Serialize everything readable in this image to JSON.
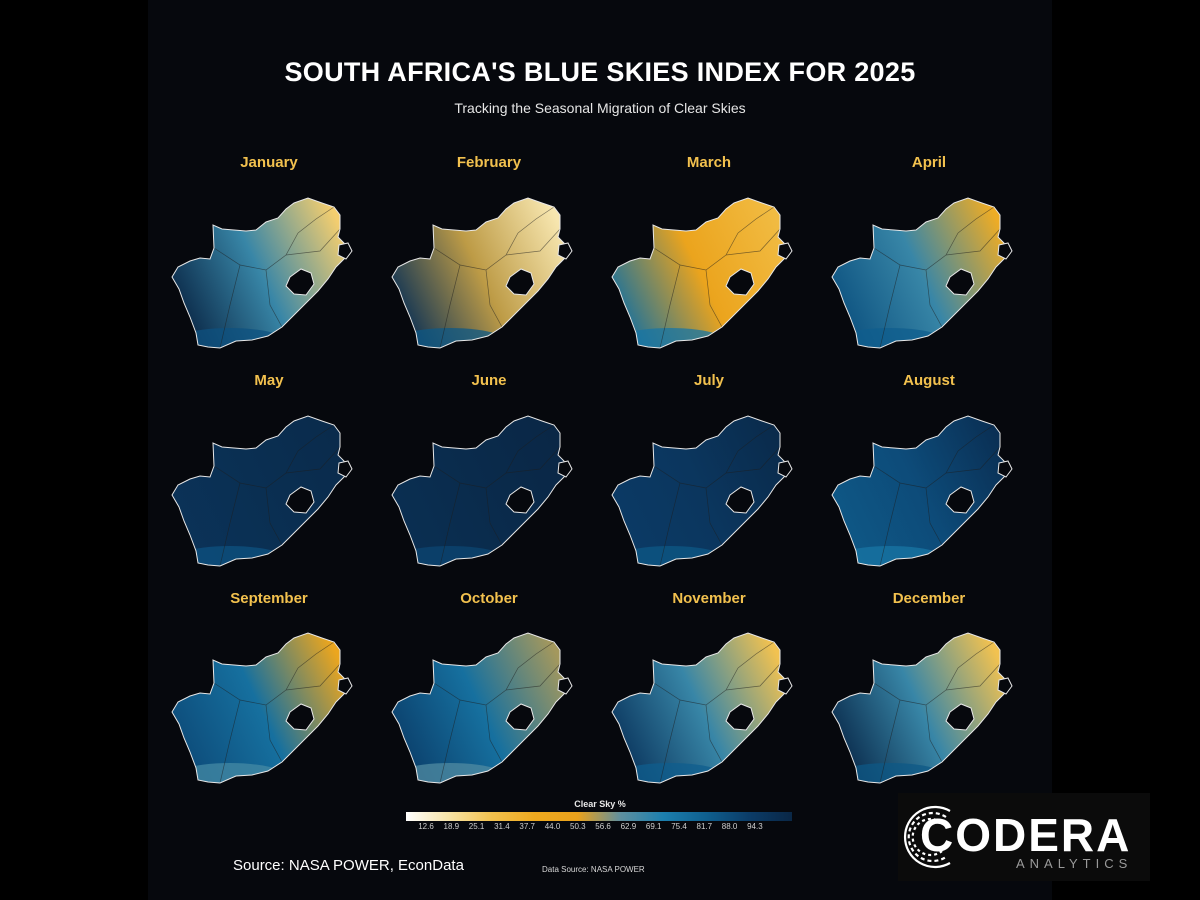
{
  "header": {
    "title": "SOUTH AFRICA'S BLUE SKIES INDEX FOR 2025",
    "subtitle": "Tracking the Seasonal Migration of Clear Skies"
  },
  "months": [
    {
      "name": "January",
      "west": 1.0,
      "center": 0.62,
      "east": 0.18,
      "cape": 0.82
    },
    {
      "name": "February",
      "west": 0.95,
      "center": 0.48,
      "east": 0.1,
      "cape": 0.8
    },
    {
      "name": "March",
      "west": 0.72,
      "center": 0.4,
      "east": 0.25,
      "cape": 0.7
    },
    {
      "name": "April",
      "west": 0.82,
      "center": 0.62,
      "east": 0.32,
      "cape": 0.78
    },
    {
      "name": "May",
      "west": 0.94,
      "center": 0.96,
      "east": 0.98,
      "cape": 0.82
    },
    {
      "name": "June",
      "west": 0.96,
      "center": 0.98,
      "east": 1.0,
      "cape": 0.86
    },
    {
      "name": "July",
      "west": 0.9,
      "center": 0.92,
      "east": 0.98,
      "cape": 0.8
    },
    {
      "name": "August",
      "west": 0.8,
      "center": 0.84,
      "east": 0.95,
      "cape": 0.7
    },
    {
      "name": "September",
      "west": 0.84,
      "center": 0.72,
      "east": 0.38,
      "cape": 0.6
    },
    {
      "name": "October",
      "west": 0.88,
      "center": 0.72,
      "east": 0.5,
      "cape": 0.58
    },
    {
      "name": "November",
      "west": 0.92,
      "center": 0.62,
      "east": 0.22,
      "cape": 0.78
    },
    {
      "name": "December",
      "west": 0.98,
      "center": 0.62,
      "east": 0.22,
      "cape": 0.8
    }
  ],
  "legend": {
    "title": "Clear Sky %",
    "ticks": [
      "12.6",
      "18.9",
      "25.1",
      "31.4",
      "37.7",
      "44.0",
      "50.3",
      "56.6",
      "62.9",
      "69.1",
      "75.4",
      "81.7",
      "88.0",
      "94.3"
    ],
    "colors": [
      "#ffffff",
      "#f6e3a6",
      "#f2c14e",
      "#eea91f",
      "#e9a11c",
      "#5f8f9e",
      "#1c7fae",
      "#0f5f8e",
      "#0b3c68",
      "#0a2746"
    ]
  },
  "footer": {
    "source": "Source: NASA POWER, EconData",
    "data_source": "Data Source: NASA POWER"
  },
  "logo": {
    "word": "CODERA",
    "sub": "ANALYTICS"
  }
}
